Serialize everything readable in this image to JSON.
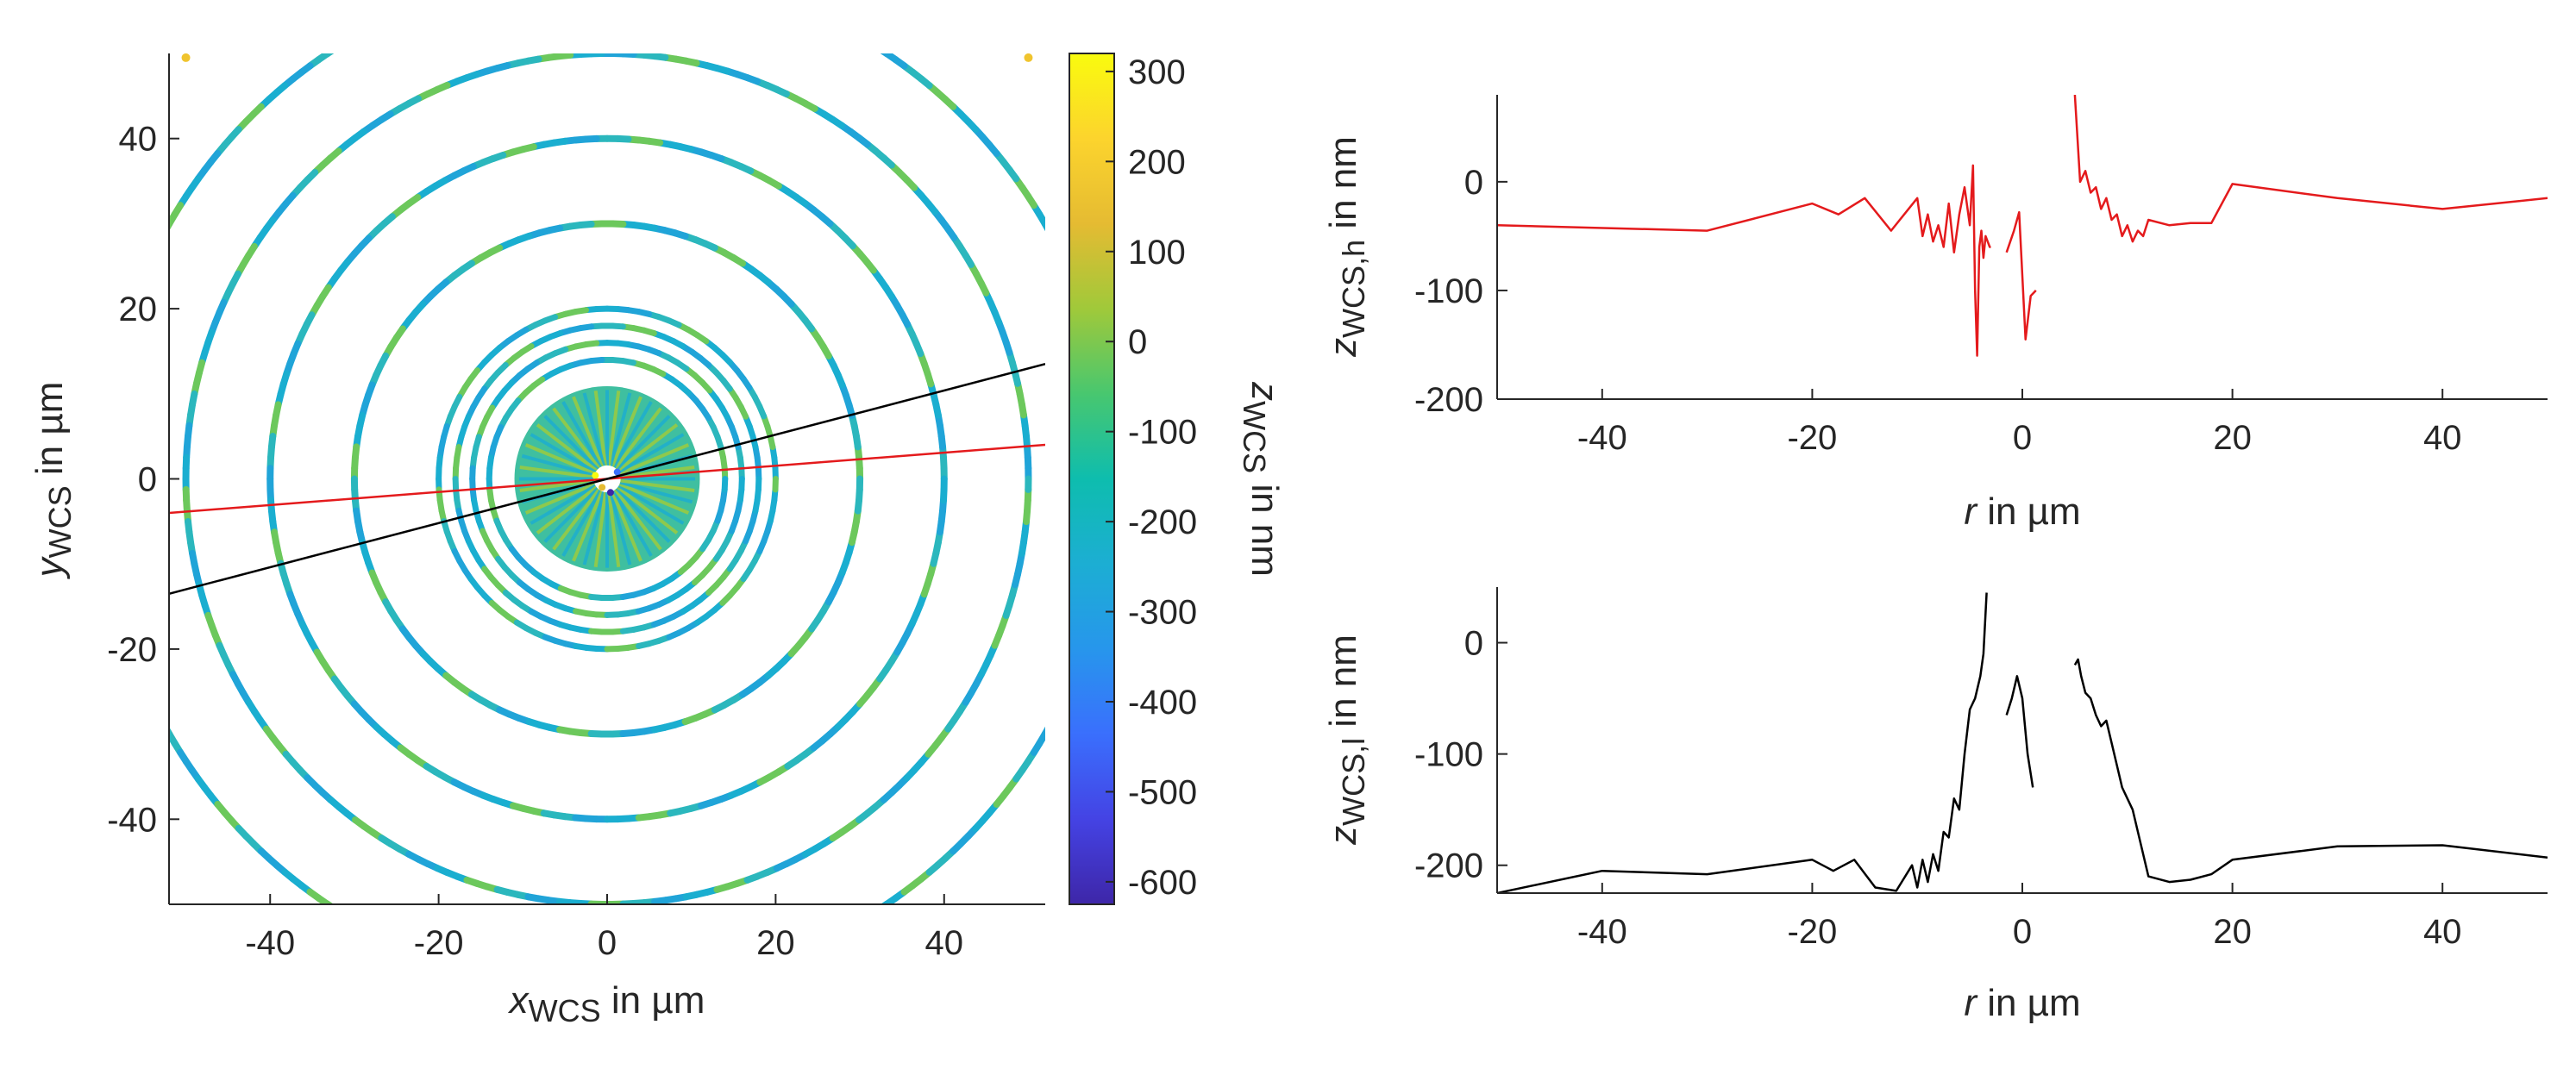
{
  "chart_data": [
    {
      "type": "scatter",
      "xlabel": {
        "main": "x",
        "sub": "WCS",
        "rest": " in µm"
      },
      "ylabel": {
        "main": "y",
        "sub": "WCS",
        "rest": " in µm"
      },
      "xlim": [
        -52,
        52
      ],
      "ylim": [
        -50,
        50
      ],
      "xticks": [
        -40,
        -20,
        0,
        20,
        40
      ],
      "yticks": [
        -40,
        -20,
        0,
        20,
        40
      ],
      "grid": false,
      "rings_radius_um": [
        60,
        50,
        40,
        30,
        20,
        18,
        16,
        14
      ],
      "central_disc_radius_um": 11,
      "ring_colors": [
        "#1aaed0",
        "#6cc85c",
        "#2bb7bd",
        "#20a4d8"
      ],
      "lines": [
        {
          "color": "#e41a1c",
          "x": [
            -52,
            52
          ],
          "y": [
            -4,
            4
          ]
        },
        {
          "color": "#000000",
          "x": [
            -52,
            52
          ],
          "y": [
            -13.5,
            13.5
          ]
        }
      ],
      "colorbar": {
        "label": {
          "main": "z",
          "sub": "WCS",
          "rest": " in nm"
        },
        "lim": [
          -625,
          320
        ],
        "ticks": [
          300,
          200,
          100,
          0,
          -100,
          -200,
          -300,
          -400,
          -500,
          -600
        ],
        "colormap": [
          "#3e26a8",
          "#4443e4",
          "#3a6ffd",
          "#2796ec",
          "#1caed3",
          "#0ebdae",
          "#48c76f",
          "#a0c93a",
          "#e5bb32",
          "#fcd42d",
          "#f9fb0e"
        ]
      }
    },
    {
      "type": "line",
      "color": "#e41a1c",
      "xlabel": {
        "main": "r",
        "rest": " in µm"
      },
      "ylabel": {
        "main": "z",
        "sub": "WCS,h",
        "rest": " in nm"
      },
      "xlim": [
        -50,
        50
      ],
      "ylim": [
        -200,
        80
      ],
      "xticks": [
        -40,
        -20,
        0,
        20,
        40
      ],
      "yticks": [
        0,
        -100,
        -200
      ],
      "series": [
        {
          "x": [
            -50,
            -30,
            -20,
            -17.5,
            -15,
            -12.5,
            -10,
            -9.5,
            -9,
            -8.5,
            -8,
            -7.5,
            -7,
            -6.5,
            -6,
            -5.5,
            -5,
            -4.7,
            -4.5,
            -4.3,
            -4.1,
            -3.9,
            -3.7,
            -3.5,
            -3.3,
            -3.1,
            -3
          ],
          "y": [
            -40,
            -45,
            -20,
            -30,
            -15,
            -45,
            -15,
            -50,
            -30,
            -55,
            -40,
            -60,
            -20,
            -65,
            -30,
            -5,
            -40,
            15,
            -100,
            -160,
            -60,
            -45,
            -70,
            -50,
            -55,
            -60,
            -60
          ]
        },
        {
          "x": [
            -1.5,
            -0.8,
            -0.3,
            0.3,
            0.8,
            1.3
          ],
          "y": [
            -65,
            -45,
            -28,
            -145,
            -105,
            -100
          ]
        },
        {
          "x": [
            5,
            5.5,
            6,
            6.5,
            7,
            7.5,
            8,
            8.5,
            9,
            9.5,
            10,
            10.5,
            11,
            11.5,
            12,
            14,
            16,
            18,
            20,
            30,
            40,
            50
          ],
          "y": [
            80,
            0,
            10,
            -10,
            -5,
            -25,
            -15,
            -35,
            -30,
            -50,
            -40,
            -55,
            -45,
            -50,
            -35,
            -40,
            -38,
            -38,
            -2,
            -15,
            -25,
            -15
          ]
        }
      ]
    },
    {
      "type": "line",
      "color": "#000000",
      "xlabel": {
        "main": "r",
        "rest": " in µm"
      },
      "ylabel": {
        "main": "z",
        "sub": "WCS,l",
        "rest": " in nm"
      },
      "xlim": [
        -50,
        50
      ],
      "ylim": [
        -225,
        50
      ],
      "xticks": [
        -40,
        -20,
        0,
        20,
        40
      ],
      "yticks": [
        0,
        -100,
        -200
      ],
      "series": [
        {
          "x": [
            -50,
            -40,
            -30,
            -20,
            -18,
            -16,
            -14,
            -12,
            -10.5,
            -10,
            -9.5,
            -9,
            -8.5,
            -8,
            -7.5,
            -7,
            -6.5,
            -6,
            -5.5,
            -5,
            -4.5,
            -4,
            -3.7,
            -3.4
          ],
          "y": [
            -225,
            -205,
            -208,
            -195,
            -205,
            -195,
            -220,
            -223,
            -200,
            -220,
            -195,
            -215,
            -190,
            -205,
            -170,
            -175,
            -140,
            -150,
            -100,
            -60,
            -50,
            -30,
            -10,
            45
          ]
        },
        {
          "x": [
            -1.5,
            -1,
            -0.5,
            0,
            0.5,
            1
          ],
          "y": [
            -65,
            -50,
            -30,
            -50,
            -100,
            -130
          ]
        },
        {
          "x": [
            5,
            5.3,
            5.6,
            6,
            6.5,
            7,
            7.5,
            8,
            8.5,
            9,
            9.5,
            10,
            10.5,
            11,
            12,
            14,
            16,
            18,
            20,
            30,
            40,
            50
          ],
          "y": [
            -20,
            -15,
            -30,
            -45,
            -50,
            -65,
            -75,
            -70,
            -90,
            -110,
            -130,
            -140,
            -150,
            -170,
            -210,
            -215,
            -213,
            -208,
            -195,
            -183,
            -182,
            -193
          ]
        }
      ]
    }
  ]
}
